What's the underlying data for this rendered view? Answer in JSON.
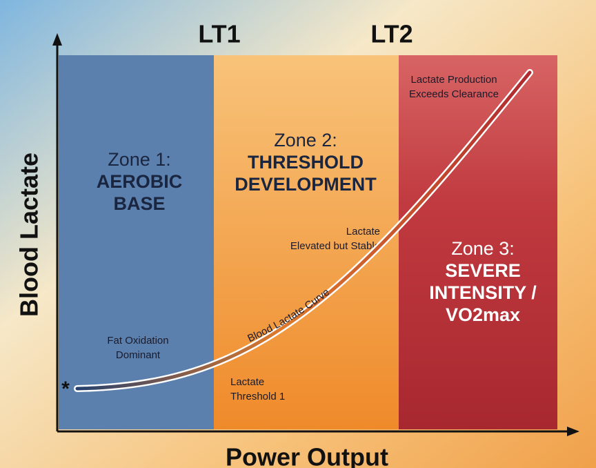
{
  "labels": {
    "lt1": "LT1",
    "lt2": "LT2",
    "y_axis": "Blood Lactate",
    "x_axis": "Power Output"
  },
  "zones": [
    {
      "title": "Zone 1:",
      "name_lines": [
        "AEROBIC",
        "BASE"
      ],
      "note_lines": [
        "Fat Oxidation",
        "Dominant"
      ]
    },
    {
      "title": "Zone 2:",
      "name_lines": [
        "THRESHOLD",
        "DEVELOPMENT"
      ],
      "note_lines": [
        "Lactate",
        "Elevated but Stable"
      ]
    },
    {
      "title": "Zone 3:",
      "name_lines": [
        "SEVERE",
        "INTENSITY /",
        "VO2max"
      ],
      "note_lines": [
        "Lactate Production",
        "Exceeds Clearance"
      ]
    }
  ],
  "curve": {
    "label": "Blood Lactate Curve",
    "start_marker": "*",
    "threshold_note_lines": [
      "Lactate",
      "Threshold 1"
    ]
  }
}
